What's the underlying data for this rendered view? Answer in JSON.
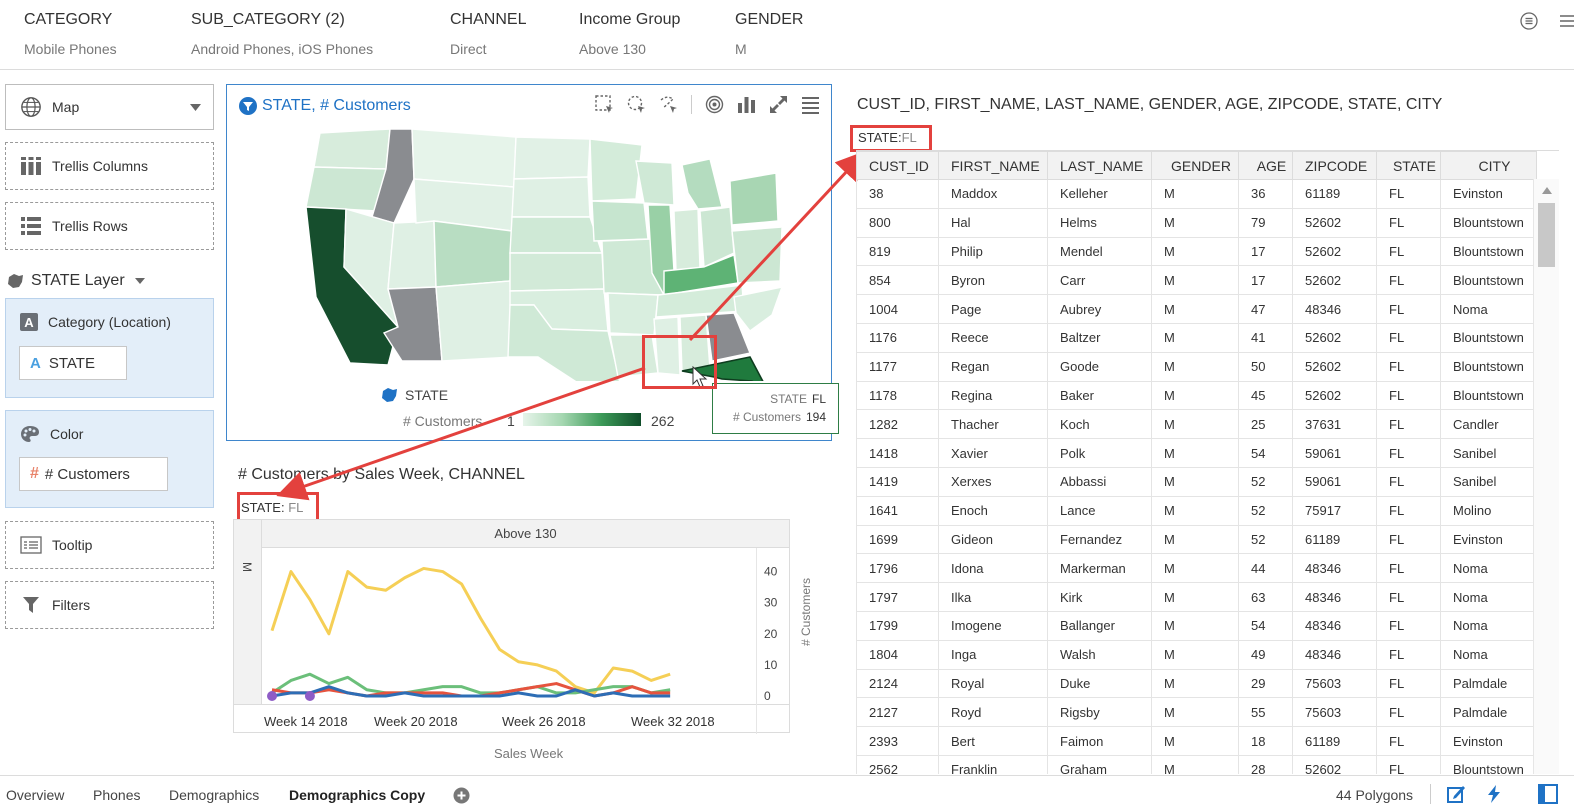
{
  "filters": [
    {
      "name": "CATEGORY",
      "value": "Mobile Phones"
    },
    {
      "name": "SUB_CATEGORY (2)",
      "value": "Android Phones, iOS Phones"
    },
    {
      "name": "CHANNEL",
      "value": "Direct"
    },
    {
      "name": "Income Group",
      "value": "Above 130"
    },
    {
      "name": "GENDER",
      "value": "M"
    }
  ],
  "left_panel": {
    "viz_type": "Map",
    "trellis_columns": "Trellis Columns",
    "trellis_rows": "Trellis Rows",
    "layer": "STATE Layer",
    "category_label": "Category (Location)",
    "category_value": "STATE",
    "color_label": "Color",
    "color_value": "# Customers",
    "tooltip": "Tooltip",
    "filters": "Filters"
  },
  "map": {
    "title": "STATE, # Customers",
    "legend_state": "STATE",
    "legend_measure": "# Customers",
    "legend_min": "1",
    "legend_max": "262",
    "tooltip": {
      "k1": "STATE",
      "v1": "FL",
      "k2": "# Customers",
      "v2": "194"
    },
    "colors": {
      "low": "#e6f4ea",
      "high": "#0f4d2a",
      "null": "#8a8c90",
      "selected": "#1f7a3d"
    }
  },
  "linechart": {
    "title": "# Customers by Sales Week, CHANNEL",
    "filter_key": "STATE:",
    "filter_val": "FL",
    "column_header": "Above 130",
    "row_header": "M",
    "ylabel": "# Customers",
    "xlabel": "Sales Week",
    "x_ticks": [
      "Week 14 2018",
      "Week 20 2018",
      "Week 26 2018",
      "Week 32 2018"
    ]
  },
  "chart_data": {
    "type": "line",
    "xlabel": "Sales Week",
    "ylabel": "# Customers",
    "ylim": [
      0,
      45
    ],
    "y_ticks": [
      0,
      10,
      20,
      30,
      40
    ],
    "grid": false,
    "x": [
      12,
      13,
      14,
      15,
      16,
      17,
      18,
      19,
      20,
      21,
      22,
      23,
      24,
      25,
      26,
      27,
      28,
      29,
      30,
      31,
      32,
      33,
      34,
      35,
      36,
      37
    ],
    "series": [
      {
        "color": "#f5cf56",
        "values": [
          21,
          40,
          31,
          20,
          40,
          35,
          34,
          38,
          41,
          40,
          36,
          25,
          15,
          11,
          10,
          8,
          3,
          1,
          9,
          8,
          5,
          7,
          null,
          null,
          null,
          null
        ]
      },
      {
        "color": "#6bbf7a",
        "values": [
          1,
          5,
          7,
          4,
          6,
          2,
          1,
          1,
          2,
          3,
          3,
          1,
          1,
          2,
          3,
          1,
          1,
          2,
          3,
          3,
          1,
          2,
          null,
          null,
          null,
          null
        ]
      },
      {
        "color": "#e6533e",
        "values": [
          2,
          1,
          1,
          2,
          1,
          0,
          1,
          1,
          1,
          1,
          0,
          0,
          1,
          2,
          3,
          4,
          2,
          0,
          1,
          3,
          1,
          1,
          null,
          null,
          null,
          null
        ]
      },
      {
        "color": "#2d6db5",
        "values": [
          0,
          1,
          1,
          3,
          1,
          0,
          0,
          1,
          0,
          0,
          0,
          0,
          0,
          1,
          0,
          0,
          2,
          0,
          1,
          0,
          0,
          0,
          null,
          null,
          null,
          null
        ]
      },
      {
        "color": "#8e5cc6",
        "values": [
          0,
          null,
          0,
          null,
          null,
          null,
          null,
          null,
          null,
          null,
          null,
          null,
          null,
          null,
          null,
          null,
          null,
          null,
          null,
          null,
          null,
          null,
          null,
          null,
          null,
          null
        ]
      }
    ]
  },
  "table": {
    "title": "CUST_ID, FIRST_NAME, LAST_NAME, GENDER, AGE, ZIPCODE, STATE, CITY",
    "filter_key": "STATE:",
    "filter_val": "FL",
    "columns": [
      "CUST_ID",
      "FIRST_NAME",
      "LAST_NAME",
      "GENDER",
      "AGE",
      "ZIPCODE",
      "STATE",
      "CITY"
    ],
    "rows": [
      [
        "38",
        "Maddox",
        "Kelleher",
        "M",
        "36",
        "61189",
        "FL",
        "Evinston"
      ],
      [
        "800",
        "Hal",
        "Helms",
        "M",
        "79",
        "52602",
        "FL",
        "Blountstown"
      ],
      [
        "819",
        "Philip",
        "Mendel",
        "M",
        "17",
        "52602",
        "FL",
        "Blountstown"
      ],
      [
        "854",
        "Byron",
        "Carr",
        "M",
        "17",
        "52602",
        "FL",
        "Blountstown"
      ],
      [
        "1004",
        "Page",
        "Aubrey",
        "M",
        "47",
        "48346",
        "FL",
        "Noma"
      ],
      [
        "1176",
        "Reece",
        "Baltzer",
        "M",
        "41",
        "52602",
        "FL",
        "Blountstown"
      ],
      [
        "1177",
        "Regan",
        "Goode",
        "M",
        "50",
        "52602",
        "FL",
        "Blountstown"
      ],
      [
        "1178",
        "Regina",
        "Baker",
        "M",
        "45",
        "52602",
        "FL",
        "Blountstown"
      ],
      [
        "1282",
        "Thacher",
        "Koch",
        "M",
        "25",
        "37631",
        "FL",
        "Candler"
      ],
      [
        "1418",
        "Xavier",
        "Polk",
        "M",
        "54",
        "59061",
        "FL",
        "Sanibel"
      ],
      [
        "1419",
        "Xerxes",
        "Abbassi",
        "M",
        "52",
        "59061",
        "FL",
        "Sanibel"
      ],
      [
        "1641",
        "Enoch",
        "Lance",
        "M",
        "52",
        "75917",
        "FL",
        "Molino"
      ],
      [
        "1699",
        "Gideon",
        "Fernandez",
        "M",
        "52",
        "61189",
        "FL",
        "Evinston"
      ],
      [
        "1796",
        "Idona",
        "Markerman",
        "M",
        "44",
        "48346",
        "FL",
        "Noma"
      ],
      [
        "1797",
        "Ilka",
        "Kirk",
        "M",
        "63",
        "48346",
        "FL",
        "Noma"
      ],
      [
        "1799",
        "Imogene",
        "Ballanger",
        "M",
        "54",
        "48346",
        "FL",
        "Noma"
      ],
      [
        "1804",
        "Inga",
        "Walsh",
        "M",
        "49",
        "48346",
        "FL",
        "Noma"
      ],
      [
        "2124",
        "Royal",
        "Duke",
        "M",
        "29",
        "75603",
        "FL",
        "Palmdale"
      ],
      [
        "2127",
        "Royd",
        "Rigsby",
        "M",
        "55",
        "75603",
        "FL",
        "Palmdale"
      ],
      [
        "2393",
        "Bert",
        "Faimon",
        "M",
        "18",
        "61189",
        "FL",
        "Evinston"
      ],
      [
        "2562",
        "Franklin",
        "Graham",
        "M",
        "28",
        "52602",
        "FL",
        "Blountstown"
      ]
    ]
  },
  "bottom": {
    "tabs": [
      "Overview",
      "Phones",
      "Demographics",
      "Demographics Copy"
    ],
    "active_tab": "Demographics Copy",
    "status": "44 Polygons"
  }
}
